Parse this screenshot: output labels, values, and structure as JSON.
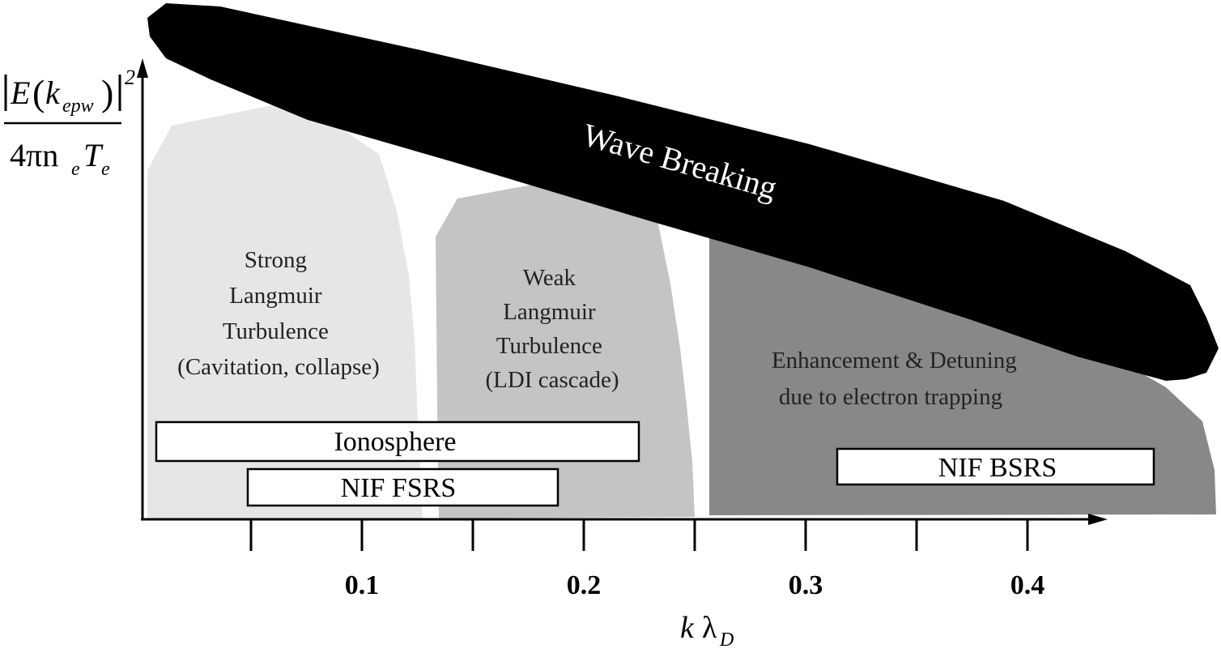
{
  "colors": {
    "strong": "#e6e6e6",
    "weak": "#c4c4c4",
    "enhancement": "#888888",
    "wave": "#000000",
    "box_fill": "#ffffff"
  },
  "y_axis": {
    "numerator_E": "E",
    "numerator_k": "k",
    "numerator_sub": "epw",
    "numerator_exp": "2",
    "denominator_pre": "4πn",
    "denominator_sub_e1": "e",
    "denominator_T": "T",
    "denominator_sub_e2": "e"
  },
  "x_axis": {
    "k": "k",
    "lambda": "λ",
    "sub": "D",
    "ticks": [
      {
        "value": 0.05,
        "label": ""
      },
      {
        "value": 0.1,
        "label": "0.1"
      },
      {
        "value": 0.15,
        "label": ""
      },
      {
        "value": 0.2,
        "label": "0.2"
      },
      {
        "value": 0.25,
        "label": ""
      },
      {
        "value": 0.3,
        "label": "0.3"
      },
      {
        "value": 0.35,
        "label": ""
      },
      {
        "value": 0.4,
        "label": "0.4"
      }
    ]
  },
  "regions": {
    "strong": [
      "Strong",
      "Langmuir",
      "Turbulence",
      "(Cavitation, collapse)"
    ],
    "weak": [
      "Weak",
      "Langmuir",
      "Turbulence",
      "(LDI cascade)"
    ],
    "enhancement": [
      "Enhancement & Detuning",
      "due to electron trapping"
    ],
    "wave": "Wave Breaking"
  },
  "boxes": {
    "ionosphere": "Ionosphere",
    "nif_fsrs": "NIF FSRS",
    "nif_bsrs": "NIF BSRS"
  }
}
